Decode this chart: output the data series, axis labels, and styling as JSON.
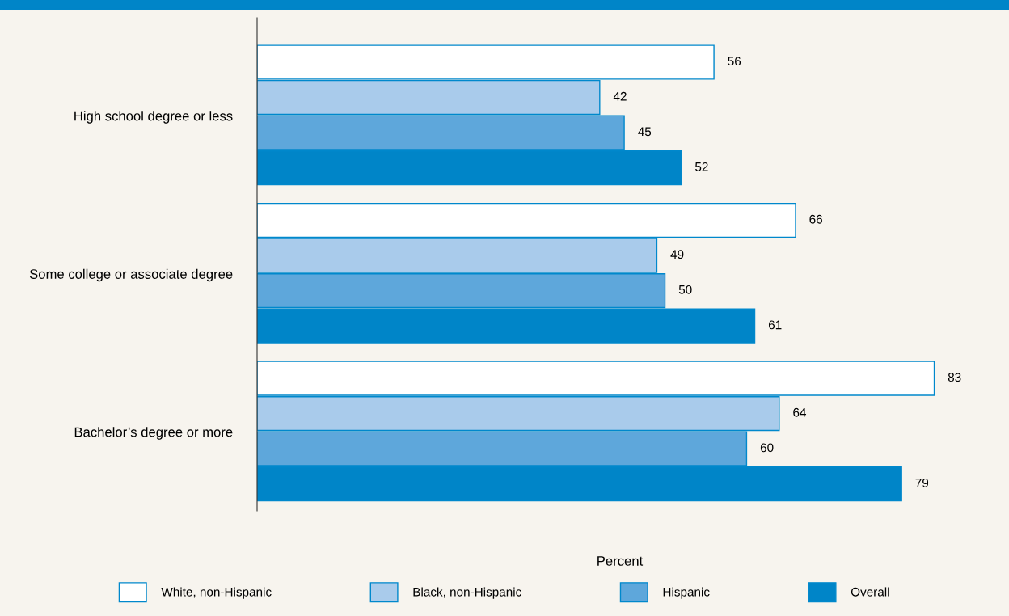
{
  "chart_data": {
    "type": "bar",
    "orientation": "horizontal",
    "xlabel": "Percent",
    "categories": [
      "High school degree or less",
      "Some college or associate degree",
      "Bachelor’s degree or more"
    ],
    "series": [
      {
        "name": "White, non-Hispanic",
        "color": "#ffffff",
        "values": [
          56,
          66,
          83
        ]
      },
      {
        "name": "Black, non-Hispanic",
        "color": "#a9cbeb",
        "values": [
          42,
          49,
          64
        ]
      },
      {
        "name": "Hispanic",
        "color": "#5ea7db",
        "values": [
          45,
          50,
          60
        ]
      },
      {
        "name": "Overall",
        "color": "#0085c8",
        "values": [
          52,
          61,
          79
        ]
      }
    ],
    "data_labels": true,
    "legend": "bottom",
    "grid": false,
    "tick_labels": "y"
  }
}
